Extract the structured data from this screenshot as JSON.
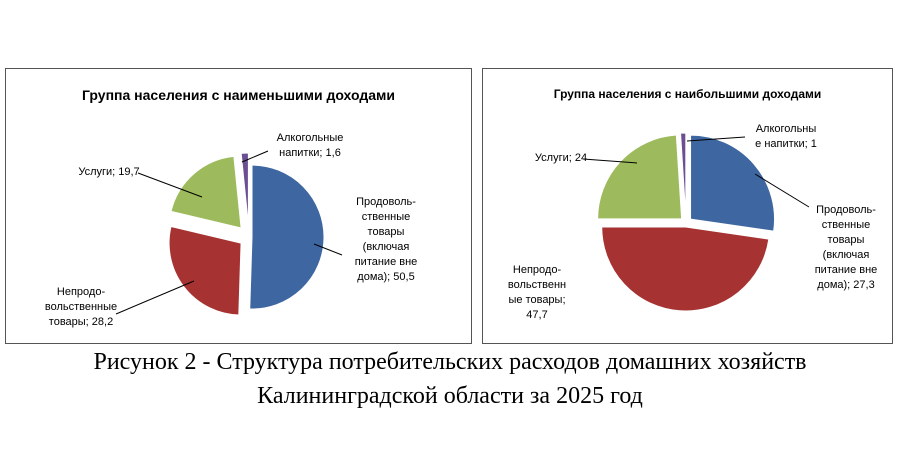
{
  "chart_data": [
    {
      "type": "pie",
      "title": "Группа населения с наименьшими доходами",
      "slices": [
        {
          "label": "Продоволь-\nственные\nтовары\n(включая\nпитание вне\nдома); 50,5",
          "value": 50.5,
          "color": "#3e67a2"
        },
        {
          "label": "Непродо-\nвольственные\nтовары; 28,2",
          "value": 28.2,
          "color": "#a63232"
        },
        {
          "label": "Услуги; 19,7",
          "value": 19.7,
          "color": "#9dbb5c"
        },
        {
          "label": "Алкогольные\nнапитки; 1,6",
          "value": 1.6,
          "color": "#6c4f92"
        }
      ]
    },
    {
      "type": "pie",
      "title": "Группа населения  с наибольшими доходами",
      "slices": [
        {
          "label": "Продоволь-\nственные\nтовары\n(включая\nпитание вне\nдома); 27,3",
          "value": 27.3,
          "color": "#3e67a2"
        },
        {
          "label": "Непродо-\nвольственн\nые товары;\n47,7",
          "value": 47.7,
          "color": "#a63232"
        },
        {
          "label": "Услуги; 24",
          "value": 24,
          "color": "#9dbb5c"
        },
        {
          "label": "Алкогольны\nе напитки; 1",
          "value": 1,
          "color": "#6c4f92"
        }
      ]
    }
  ],
  "caption": {
    "line1": "Рисунок 2 - Структура потребительских расходов домашних хозяйств",
    "line2": "Калининградской области за 2025 год"
  }
}
